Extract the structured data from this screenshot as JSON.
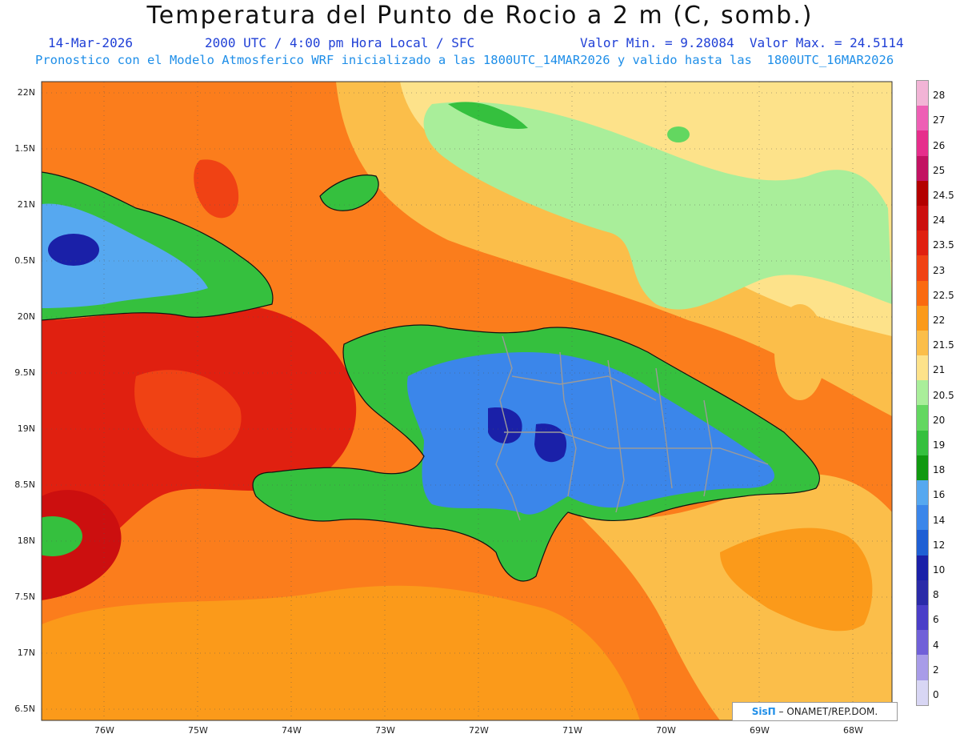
{
  "title": "Temperatura del Punto de Rocio a 2 m (C, somb.)",
  "header": {
    "date": "14-Mar-2026",
    "time": "2000 UTC / 4:00 pm Hora Local / SFC",
    "min_max": "Valor Min. = 9.28084  Valor Max. = 24.5114",
    "forecast": "Pronostico con el Modelo Atmosferico WRF inicializado a las 1800UTC_14MAR2026 y valido hasta las  1800UTC_16MAR2026"
  },
  "axes": {
    "lat_labels": [
      "22N",
      "1.5N",
      "21N",
      "0.5N",
      "20N",
      "9.5N",
      "19N",
      "8.5N",
      "18N",
      "7.5N",
      "17N",
      "6.5N"
    ],
    "lon_labels": [
      "76W",
      "75W",
      "74W",
      "73W",
      "72W",
      "71W",
      "70W",
      "69W",
      "68W"
    ]
  },
  "legend": {
    "labels": [
      "28",
      "27",
      "26",
      "25",
      "24.5",
      "24",
      "23.5",
      "23",
      "22.5",
      "22",
      "21.5",
      "21",
      "20.5",
      "20",
      "19",
      "18",
      "16",
      "14",
      "12",
      "10",
      "8",
      "6",
      "4",
      "2",
      "0"
    ],
    "colors": [
      "#f2b4d6",
      "#ee5fb5",
      "#e62e8c",
      "#c21262",
      "#b30000",
      "#cc0f0f",
      "#e02010",
      "#f04214",
      "#fa6a10",
      "#fb9a1a",
      "#fbbe4a",
      "#fde28a",
      "#a9ee9a",
      "#63d760",
      "#35c03e",
      "#109910",
      "#56a8f0",
      "#3b86ea",
      "#1f5fd4",
      "#1a20a8",
      "#2a2aa8",
      "#4a3ec8",
      "#7060d8",
      "#a89ce8",
      "#d8d6f4"
    ]
  },
  "credit": {
    "brand": "SisΠ",
    "text": " – ONAMET/REP.DOM."
  },
  "colors": {
    "ocean_orange": "#fb7d1c",
    "ocean_red": "#e02010",
    "land_green": "#35c03e",
    "land_blue": "#3b86ea",
    "pale_yellow": "#fde28a",
    "light_green": "#a9ee9a"
  }
}
